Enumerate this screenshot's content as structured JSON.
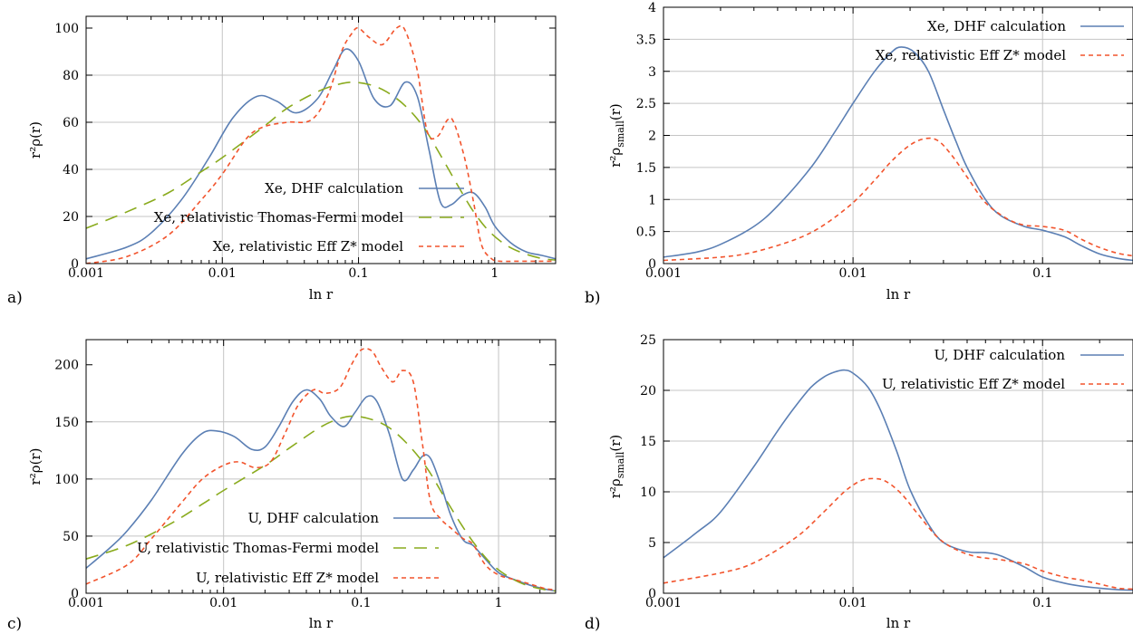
{
  "colors": {
    "dhf": "#5b7fb4",
    "tf": "#8aab1e",
    "eff": "#f2542d",
    "grid": "#c4c4c4"
  },
  "chart_data": [
    {
      "panel": "a)",
      "type": "line",
      "xlabel": "ln r",
      "ylabel": "r²ρ(r)",
      "xscale": "log",
      "xlim": [
        0.001,
        2.8
      ],
      "ylim": [
        0,
        105
      ],
      "xticks": [
        0.001,
        0.01,
        0.1,
        1
      ],
      "xtick_labels": [
        "0.001",
        "0.01",
        "0.1",
        "1"
      ],
      "yticks": [
        0,
        20,
        40,
        60,
        80,
        100
      ],
      "ytick_labels": [
        "0",
        "20",
        "40",
        "60",
        "80",
        "100"
      ],
      "legend_position": "center-right",
      "series": [
        {
          "name": "Xe, DHF calculation",
          "style": "solid",
          "color_key": "dhf",
          "x": [
            0.001,
            0.002,
            0.003,
            0.005,
            0.008,
            0.012,
            0.018,
            0.025,
            0.035,
            0.05,
            0.065,
            0.08,
            0.1,
            0.13,
            0.17,
            0.22,
            0.27,
            0.33,
            0.4,
            0.48,
            0.58,
            0.7,
            0.85,
            1.0,
            1.3,
            1.7,
            2.2,
            2.8
          ],
          "y": [
            2,
            7,
            13,
            27,
            45,
            62,
            71,
            69,
            64,
            70,
            82,
            91,
            86,
            70,
            67,
            77,
            71,
            48,
            26,
            25,
            29,
            30,
            24,
            16,
            9,
            5,
            3.5,
            2
          ]
        },
        {
          "name": "Xe, relativistic Thomas-Fermi model",
          "style": "dashed",
          "color_key": "tf",
          "x": [
            0.001,
            0.002,
            0.004,
            0.007,
            0.01,
            0.02,
            0.03,
            0.05,
            0.07,
            0.09,
            0.12,
            0.16,
            0.22,
            0.3,
            0.4,
            0.55,
            0.7,
            0.9,
            1.2,
            1.6,
            2.2,
            2.8
          ],
          "y": [
            15,
            22,
            30,
            39,
            45,
            58,
            66,
            73,
            76,
            77,
            76,
            73,
            67,
            58,
            46,
            32,
            22,
            14,
            8,
            4.5,
            2.2,
            1.5
          ]
        },
        {
          "name": "Xe, relativistic Eff Z* model",
          "style": "dotted",
          "color_key": "eff",
          "x": [
            0.001,
            0.002,
            0.004,
            0.007,
            0.01,
            0.015,
            0.02,
            0.03,
            0.045,
            0.06,
            0.075,
            0.09,
            0.1,
            0.12,
            0.15,
            0.19,
            0.22,
            0.27,
            0.32,
            0.38,
            0.45,
            0.5,
            0.6,
            0.7,
            0.8,
            0.95,
            1.1,
            1.5,
            2.2,
            2.8
          ],
          "y": [
            0,
            3,
            12,
            27,
            38,
            53,
            58,
            60,
            61,
            72,
            90,
            98,
            100,
            96,
            93,
            100,
            99,
            82,
            56,
            54,
            61,
            60,
            45,
            26,
            8,
            2,
            1,
            1,
            1,
            1
          ]
        }
      ]
    },
    {
      "panel": "b)",
      "type": "line",
      "xlabel": "ln r",
      "ylabel": "r²ρsmall(r)",
      "xscale": "log",
      "xlim": [
        0.001,
        0.3
      ],
      "ylim": [
        0,
        4
      ],
      "xticks": [
        0.001,
        0.01,
        0.1
      ],
      "xtick_labels": [
        "0.001",
        "0.01",
        "0.1"
      ],
      "yticks": [
        0,
        0.5,
        1,
        1.5,
        2,
        2.5,
        3,
        3.5,
        4
      ],
      "ytick_labels": [
        "0",
        "0.5",
        "1",
        "1.5",
        "2",
        "2.5",
        "3",
        "3.5",
        "4"
      ],
      "legend_position": "top-right",
      "series": [
        {
          "name": "Xe, DHF calculation",
          "style": "solid",
          "color_key": "dhf",
          "x": [
            0.001,
            0.0015,
            0.002,
            0.003,
            0.004,
            0.006,
            0.008,
            0.01,
            0.013,
            0.016,
            0.018,
            0.021,
            0.025,
            0.03,
            0.035,
            0.04,
            0.05,
            0.06,
            0.08,
            0.1,
            0.13,
            0.16,
            0.2,
            0.25,
            0.3
          ],
          "y": [
            0.1,
            0.18,
            0.3,
            0.58,
            0.9,
            1.5,
            2.05,
            2.5,
            3.0,
            3.3,
            3.38,
            3.3,
            3.0,
            2.4,
            1.9,
            1.5,
            1.0,
            0.75,
            0.58,
            0.52,
            0.42,
            0.28,
            0.15,
            0.08,
            0.05
          ]
        },
        {
          "name": "Xe, relativistic Eff Z* model",
          "style": "dotted",
          "color_key": "eff",
          "x": [
            0.001,
            0.002,
            0.003,
            0.005,
            0.007,
            0.01,
            0.013,
            0.016,
            0.02,
            0.024,
            0.028,
            0.033,
            0.04,
            0.05,
            0.065,
            0.08,
            0.1,
            0.13,
            0.16,
            0.2,
            0.25,
            0.3
          ],
          "y": [
            0.05,
            0.1,
            0.18,
            0.38,
            0.6,
            0.95,
            1.3,
            1.6,
            1.85,
            1.95,
            1.92,
            1.7,
            1.35,
            0.95,
            0.7,
            0.6,
            0.58,
            0.52,
            0.38,
            0.25,
            0.16,
            0.12
          ]
        }
      ]
    },
    {
      "panel": "c)",
      "type": "line",
      "xlabel": "ln r",
      "ylabel": "r²ρ(r)",
      "xscale": "log",
      "xlim": [
        0.001,
        2.6
      ],
      "ylim": [
        0,
        222
      ],
      "xticks": [
        0.001,
        0.01,
        0.1,
        1
      ],
      "xtick_labels": [
        "0.001",
        "0.01",
        "0.1",
        "1"
      ],
      "yticks": [
        0,
        50,
        100,
        150,
        200
      ],
      "ytick_labels": [
        "0",
        "50",
        "100",
        "150",
        "200"
      ],
      "legend_position": "center-right",
      "series": [
        {
          "name": "U, DHF calculation",
          "style": "solid",
          "color_key": "dhf",
          "x": [
            0.001,
            0.0015,
            0.002,
            0.003,
            0.005,
            0.007,
            0.009,
            0.012,
            0.016,
            0.02,
            0.025,
            0.032,
            0.04,
            0.05,
            0.06,
            0.075,
            0.09,
            0.11,
            0.13,
            0.16,
            0.2,
            0.24,
            0.28,
            0.32,
            0.38,
            0.45,
            0.55,
            0.65,
            0.8,
            1.0,
            1.3,
            1.7,
            2.2,
            2.6
          ],
          "y": [
            22,
            40,
            55,
            82,
            122,
            140,
            142,
            137,
            126,
            128,
            145,
            168,
            178,
            170,
            155,
            146,
            158,
            172,
            168,
            140,
            100,
            108,
            120,
            118,
            95,
            68,
            47,
            42,
            30,
            18,
            12,
            7,
            3.5,
            2
          ]
        },
        {
          "name": "U, relativistic Thomas-Fermi model",
          "style": "dashed",
          "color_key": "tf",
          "x": [
            0.001,
            0.002,
            0.004,
            0.007,
            0.01,
            0.02,
            0.03,
            0.05,
            0.07,
            0.09,
            0.12,
            0.16,
            0.22,
            0.3,
            0.4,
            0.55,
            0.7,
            0.9,
            1.2,
            1.6,
            2.2,
            2.6
          ],
          "y": [
            30,
            42,
            60,
            78,
            90,
            112,
            127,
            145,
            153,
            155,
            152,
            145,
            130,
            110,
            85,
            58,
            40,
            25,
            14,
            7,
            3,
            2
          ]
        },
        {
          "name": "U, relativistic Eff Z* model",
          "style": "dotted",
          "color_key": "eff",
          "x": [
            0.001,
            0.002,
            0.003,
            0.005,
            0.007,
            0.01,
            0.013,
            0.017,
            0.022,
            0.028,
            0.035,
            0.045,
            0.055,
            0.07,
            0.085,
            0.1,
            0.12,
            0.14,
            0.17,
            0.2,
            0.24,
            0.28,
            0.32,
            0.38,
            0.45,
            0.55,
            0.65,
            0.8,
            1.0,
            1.3,
            1.7,
            2.2,
            2.6
          ],
          "y": [
            8,
            25,
            48,
            80,
            100,
            112,
            115,
            110,
            115,
            140,
            165,
            178,
            175,
            180,
            200,
            213,
            212,
            198,
            185,
            195,
            185,
            130,
            80,
            65,
            57,
            48,
            43,
            25,
            16,
            12,
            8,
            4,
            3
          ]
        }
      ]
    },
    {
      "panel": "d)",
      "type": "line",
      "xlabel": "ln r",
      "ylabel": "r²ρsmall(r)",
      "xscale": "log",
      "xlim": [
        0.001,
        0.3
      ],
      "ylim": [
        0,
        25
      ],
      "xticks": [
        0.001,
        0.01,
        0.1
      ],
      "xtick_labels": [
        "0.001",
        "0.01",
        "0.1"
      ],
      "yticks": [
        0,
        5,
        10,
        15,
        20,
        25
      ],
      "ytick_labels": [
        "0",
        "5",
        "10",
        "15",
        "20",
        "25"
      ],
      "legend_position": "top-right",
      "series": [
        {
          "name": "U, DHF calculation",
          "style": "solid",
          "color_key": "dhf",
          "x": [
            0.001,
            0.0015,
            0.002,
            0.003,
            0.004,
            0.005,
            0.006,
            0.007,
            0.008,
            0.009,
            0.01,
            0.012,
            0.014,
            0.017,
            0.02,
            0.025,
            0.03,
            0.04,
            0.05,
            0.06,
            0.08,
            0.1,
            0.13,
            0.16,
            0.2,
            0.25,
            0.3
          ],
          "y": [
            3.5,
            6,
            8,
            12.5,
            16,
            18.5,
            20.3,
            21.3,
            21.8,
            22,
            21.7,
            20.3,
            18,
            14,
            10.2,
            6.8,
            5.0,
            4.1,
            4.0,
            3.7,
            2.6,
            1.6,
            1.0,
            0.7,
            0.5,
            0.35,
            0.3
          ]
        },
        {
          "name": "U, relativistic Eff Z* model",
          "style": "dotted",
          "color_key": "eff",
          "x": [
            0.001,
            0.002,
            0.003,
            0.005,
            0.007,
            0.009,
            0.011,
            0.013,
            0.015,
            0.018,
            0.022,
            0.028,
            0.035,
            0.045,
            0.06,
            0.08,
            0.1,
            0.13,
            0.16,
            0.2,
            0.25,
            0.3
          ],
          "y": [
            1,
            2,
            3,
            5.5,
            8,
            10,
            11.1,
            11.3,
            11,
            9.8,
            7.8,
            5.5,
            4.3,
            3.6,
            3.3,
            2.9,
            2.2,
            1.6,
            1.3,
            0.9,
            0.5,
            0.4
          ]
        }
      ]
    }
  ]
}
